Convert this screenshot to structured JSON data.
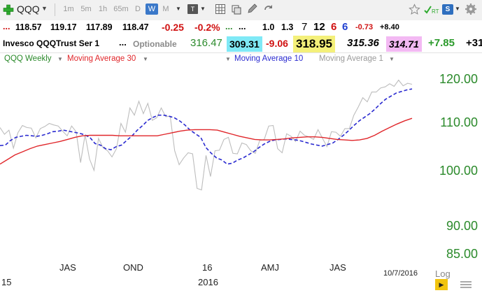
{
  "toolbar": {
    "symbol": "QQQ",
    "intervals": [
      "1m",
      "5m",
      "1h",
      "65m",
      "D",
      "W",
      "M"
    ],
    "active_interval": "W",
    "rt_label": "RT",
    "s_label": "S"
  },
  "quote_row": {
    "values": [
      "118.57",
      "119.17",
      "117.89",
      "118.47"
    ],
    "change": "-0.25",
    "change_pct": "-0.2%",
    "extra": [
      "1.0",
      "1.3",
      "7",
      "12",
      "6",
      "6",
      "-0.73",
      "+8.40"
    ]
  },
  "info_row": {
    "name": "Invesco QQQTrust Ser 1",
    "dots": "...",
    "optionable": "Optionable",
    "v1": "316.47",
    "v2": "309.31",
    "v3": "-9.06",
    "v4": "318.95",
    "v5": "315.36",
    "v6": "314.71",
    "v7": "+7.85",
    "v8": "+31"
  },
  "legend": {
    "qqq_weekly": "QQQ Weekly",
    "ma30": "Moving Average 30",
    "ma10": "Moving Average 10",
    "ma1": "Moving Average 1"
  },
  "colors": {
    "price": "#bdbdbd",
    "ma30": "#e0262a",
    "ma10": "#2a2ad0",
    "axis": "#2b8a2b"
  },
  "chart_data": {
    "type": "line",
    "yticks": [
      "120.00",
      "110.00",
      "100.00",
      "90.00",
      "85.00"
    ],
    "ylim": [
      84.5,
      122.5
    ],
    "xlabels": [
      "JAS",
      "OND",
      "16",
      "AMJ",
      "JAS"
    ],
    "year_label": "2016",
    "left_label": "15",
    "date_label": "10/7/2016",
    "log_label": "Log",
    "series": [
      {
        "name": "Moving Average 1",
        "values": [
          110.5,
          109.2,
          110,
          106.5,
          109.5,
          110.9,
          110.5,
          110.4,
          108.5,
          110.3,
          110.7,
          111.3,
          111,
          110.8,
          109.8,
          108.9,
          110.8,
          109.7,
          103.7,
          109.1,
          104.4,
          102.2,
          108.4,
          106.6,
          106,
          104.8,
          106.4,
          111.3,
          109.6,
          114.3,
          112.9,
          115.6,
          113.2,
          115.2,
          111.9,
          112.4,
          114.3,
          112.6,
          112.7,
          106,
          103.3,
          104.6,
          105.6,
          105.4,
          98.7,
          98.4,
          105.1,
          101,
          106,
          106.1,
          108.2,
          108.6,
          105.5,
          105.4,
          107.5,
          107.2,
          106,
          105.5,
          108,
          108.2,
          110.8,
          110.9,
          106.4,
          105.6,
          109.3,
          108.8,
          107.8,
          109.8,
          109,
          108.7,
          108.2,
          110.1,
          108.4,
          106.8,
          109.7,
          109.6,
          108.8,
          110.3,
          110.3,
          112.9,
          114.5,
          116.3,
          115.5,
          117.4,
          117.4,
          118.2,
          118.4,
          119,
          118.5,
          119.7,
          118.6,
          119.1,
          118.9
        ]
      },
      {
        "name": "Moving Average 10",
        "values": [
          107,
          107.1,
          108,
          108.6,
          108.8,
          109,
          108.9,
          108.8,
          109,
          109.3,
          109.7,
          109.8,
          110,
          109.8,
          109.6,
          109.4,
          109.1,
          108.6,
          107.4,
          107.1,
          106.4,
          106.2,
          106.8,
          107.1,
          108,
          108.9,
          110,
          110.9,
          111.9,
          112.5,
          112.9,
          112.9,
          112.7,
          112.4,
          111.8,
          111,
          110,
          109.3,
          108.6,
          106.6,
          105.5,
          104.6,
          104.2,
          103.4,
          103.6,
          104.2,
          104.6,
          105.2,
          105.8,
          106.6,
          107.3,
          107.8,
          108.1,
          108.2,
          108.3,
          108.2,
          108.1,
          107.9,
          107.6,
          107.3,
          107.1,
          106.9,
          107.2,
          107.5,
          108.2,
          109,
          109.9,
          110.9,
          111.8,
          112.5,
          113.2,
          114.1,
          115.1,
          116,
          116.6,
          117.2,
          117.5,
          117.8,
          118
        ]
      },
      {
        "name": "Moving Average 30",
        "values": [
          103.4,
          104.3,
          105.2,
          105.8,
          106.4,
          106.9,
          107.2,
          107.5,
          107.8,
          108.2,
          108.6,
          108.9,
          109,
          109,
          109,
          109,
          108.9,
          108.9,
          108.9,
          108.9,
          108.9,
          108.9,
          109.2,
          109.5,
          109.8,
          110,
          110.1,
          110.1,
          110.1,
          110,
          109.6,
          109.2,
          108.8,
          108.5,
          108.2,
          108.1,
          108.1,
          108.2,
          108.3,
          108.5,
          108.6,
          108.7,
          108.7,
          108.6,
          108.4,
          108.2,
          108.1,
          108,
          108.1,
          108.4,
          109,
          109.8,
          110.5,
          111.2,
          111.8,
          112.3
        ]
      }
    ]
  }
}
